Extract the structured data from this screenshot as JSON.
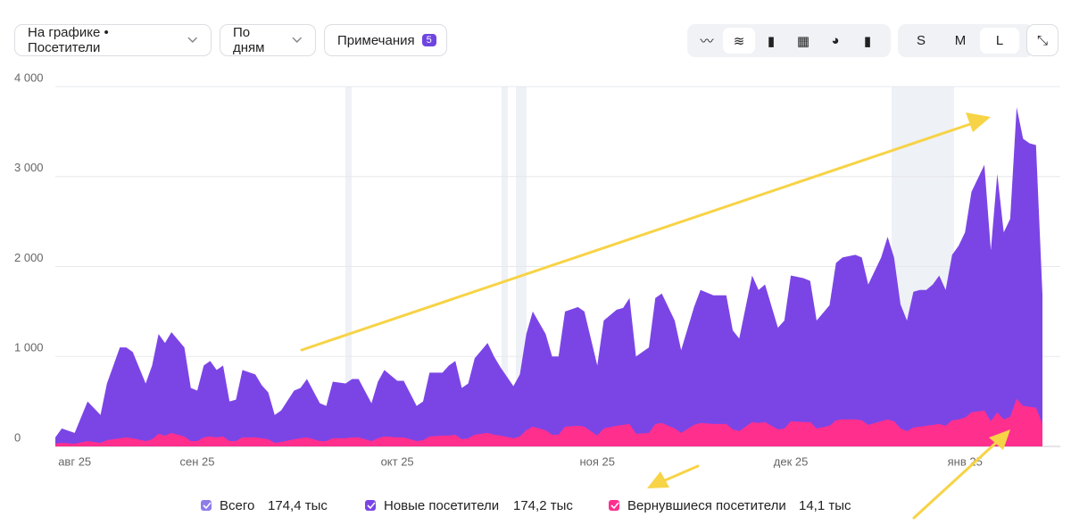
{
  "toolbar": {
    "series_selector": "На графике • Посетители",
    "period": "По дням",
    "notes": "Примечания",
    "notes_count": "5",
    "sizes": [
      "S",
      "M",
      "L"
    ]
  },
  "legend": [
    {
      "label": "Всего",
      "total": "174,4 тыс",
      "color": "#8e7ce8"
    },
    {
      "label": "Новые посетители",
      "total": "174,2 тыс",
      "color": "#7b45e6"
    },
    {
      "label": "Вернувшиеся посетители",
      "total": "14,1 тыс",
      "color": "#ff2f8e"
    }
  ],
  "chart_data": {
    "type": "area",
    "x": [
      0,
      1,
      3,
      5,
      7,
      8,
      10,
      11,
      12,
      14,
      15,
      16,
      17,
      18,
      20,
      21,
      22,
      23,
      24,
      25,
      26,
      27,
      28,
      29,
      31,
      32,
      33,
      34,
      35,
      37,
      38,
      39,
      41,
      42,
      43,
      45,
      46,
      47,
      49,
      50,
      51,
      53,
      54,
      56,
      57,
      58,
      60,
      61,
      62,
      63,
      64,
      65,
      67,
      68,
      69,
      71,
      72,
      73,
      74,
      76,
      77,
      78,
      79,
      81,
      82,
      84,
      85,
      87,
      88,
      89,
      90,
      92,
      93,
      94,
      96,
      97,
      99,
      100,
      102,
      104,
      105,
      106,
      108,
      109,
      110,
      112,
      113,
      114,
      116,
      117,
      118,
      120,
      121,
      122,
      124,
      125,
      126,
      128,
      129,
      130,
      131,
      132,
      133,
      134,
      135,
      136,
      137,
      138,
      139,
      140,
      141,
      142,
      144,
      145,
      146,
      147,
      148,
      149,
      150,
      151,
      152,
      153
    ],
    "series": [
      {
        "name": "Новые посетители",
        "color": "#7b45e6",
        "values": [
          100,
          200,
          150,
          500,
          350,
          700,
          1100,
          1100,
          1050,
          700,
          900,
          1250,
          1150,
          1270,
          1100,
          650,
          620,
          900,
          950,
          850,
          900,
          500,
          520,
          850,
          800,
          680,
          600,
          350,
          400,
          620,
          650,
          750,
          480,
          450,
          720,
          700,
          750,
          750,
          480,
          720,
          850,
          730,
          730,
          450,
          500,
          820,
          820,
          900,
          950,
          650,
          700,
          980,
          1150,
          1000,
          880,
          670,
          800,
          1250,
          1500,
          1250,
          1000,
          1000,
          1500,
          1550,
          1500,
          900,
          1400,
          1520,
          1540,
          1650,
          1000,
          1100,
          1650,
          1700,
          1400,
          1070,
          1550,
          1740,
          1680,
          1680,
          1290,
          1200,
          1900,
          1740,
          1800,
          1320,
          1400,
          1900,
          1870,
          1840,
          1400,
          1570,
          2040,
          2100,
          2130,
          2100,
          1800,
          2100,
          2330,
          2100,
          1580,
          1400,
          1720,
          1740,
          1740,
          1800,
          1900,
          1740,
          2130,
          2230,
          2380,
          2830,
          3130,
          2180,
          3030,
          2380,
          2530,
          3770,
          3420,
          3370,
          3350,
          1690
        ]
      },
      {
        "name": "Вернувшиеся посетители",
        "color": "#ff2f8e",
        "values": [
          30,
          40,
          30,
          60,
          40,
          70,
          90,
          100,
          90,
          60,
          80,
          140,
          120,
          150,
          110,
          60,
          60,
          100,
          110,
          100,
          110,
          60,
          60,
          100,
          100,
          90,
          80,
          40,
          50,
          80,
          90,
          100,
          60,
          60,
          90,
          90,
          100,
          100,
          60,
          90,
          110,
          100,
          100,
          60,
          70,
          110,
          120,
          120,
          130,
          80,
          90,
          130,
          150,
          130,
          120,
          90,
          110,
          180,
          220,
          180,
          130,
          130,
          220,
          230,
          220,
          120,
          200,
          230,
          240,
          250,
          140,
          150,
          250,
          260,
          200,
          150,
          240,
          260,
          250,
          250,
          190,
          170,
          270,
          260,
          270,
          190,
          200,
          280,
          270,
          270,
          200,
          230,
          290,
          300,
          300,
          290,
          240,
          280,
          300,
          280,
          200,
          170,
          210,
          220,
          230,
          240,
          250,
          230,
          290,
          300,
          320,
          380,
          400,
          280,
          380,
          300,
          330,
          530,
          450,
          440,
          430,
          250
        ]
      }
    ],
    "xlim": [
      0,
      153
    ],
    "xticks": [
      {
        "value": 3,
        "label": "авг 25"
      },
      {
        "value": 22,
        "label": "сен 25"
      },
      {
        "value": 53,
        "label": "окт 25"
      },
      {
        "value": 84,
        "label": "ноя 25"
      },
      {
        "value": 114,
        "label": "дек 25"
      },
      {
        "value": 141,
        "label": "янв 25"
      }
    ],
    "ylim": [
      0,
      4000
    ],
    "yticks": [
      0,
      {
        "value": 1000,
        "label": "1 000"
      },
      {
        "value": 2000,
        "label": "2 000"
      },
      {
        "value": 3000,
        "label": "3 000"
      },
      {
        "value": 4000,
        "label": "4 000"
      }
    ],
    "grid": true
  }
}
